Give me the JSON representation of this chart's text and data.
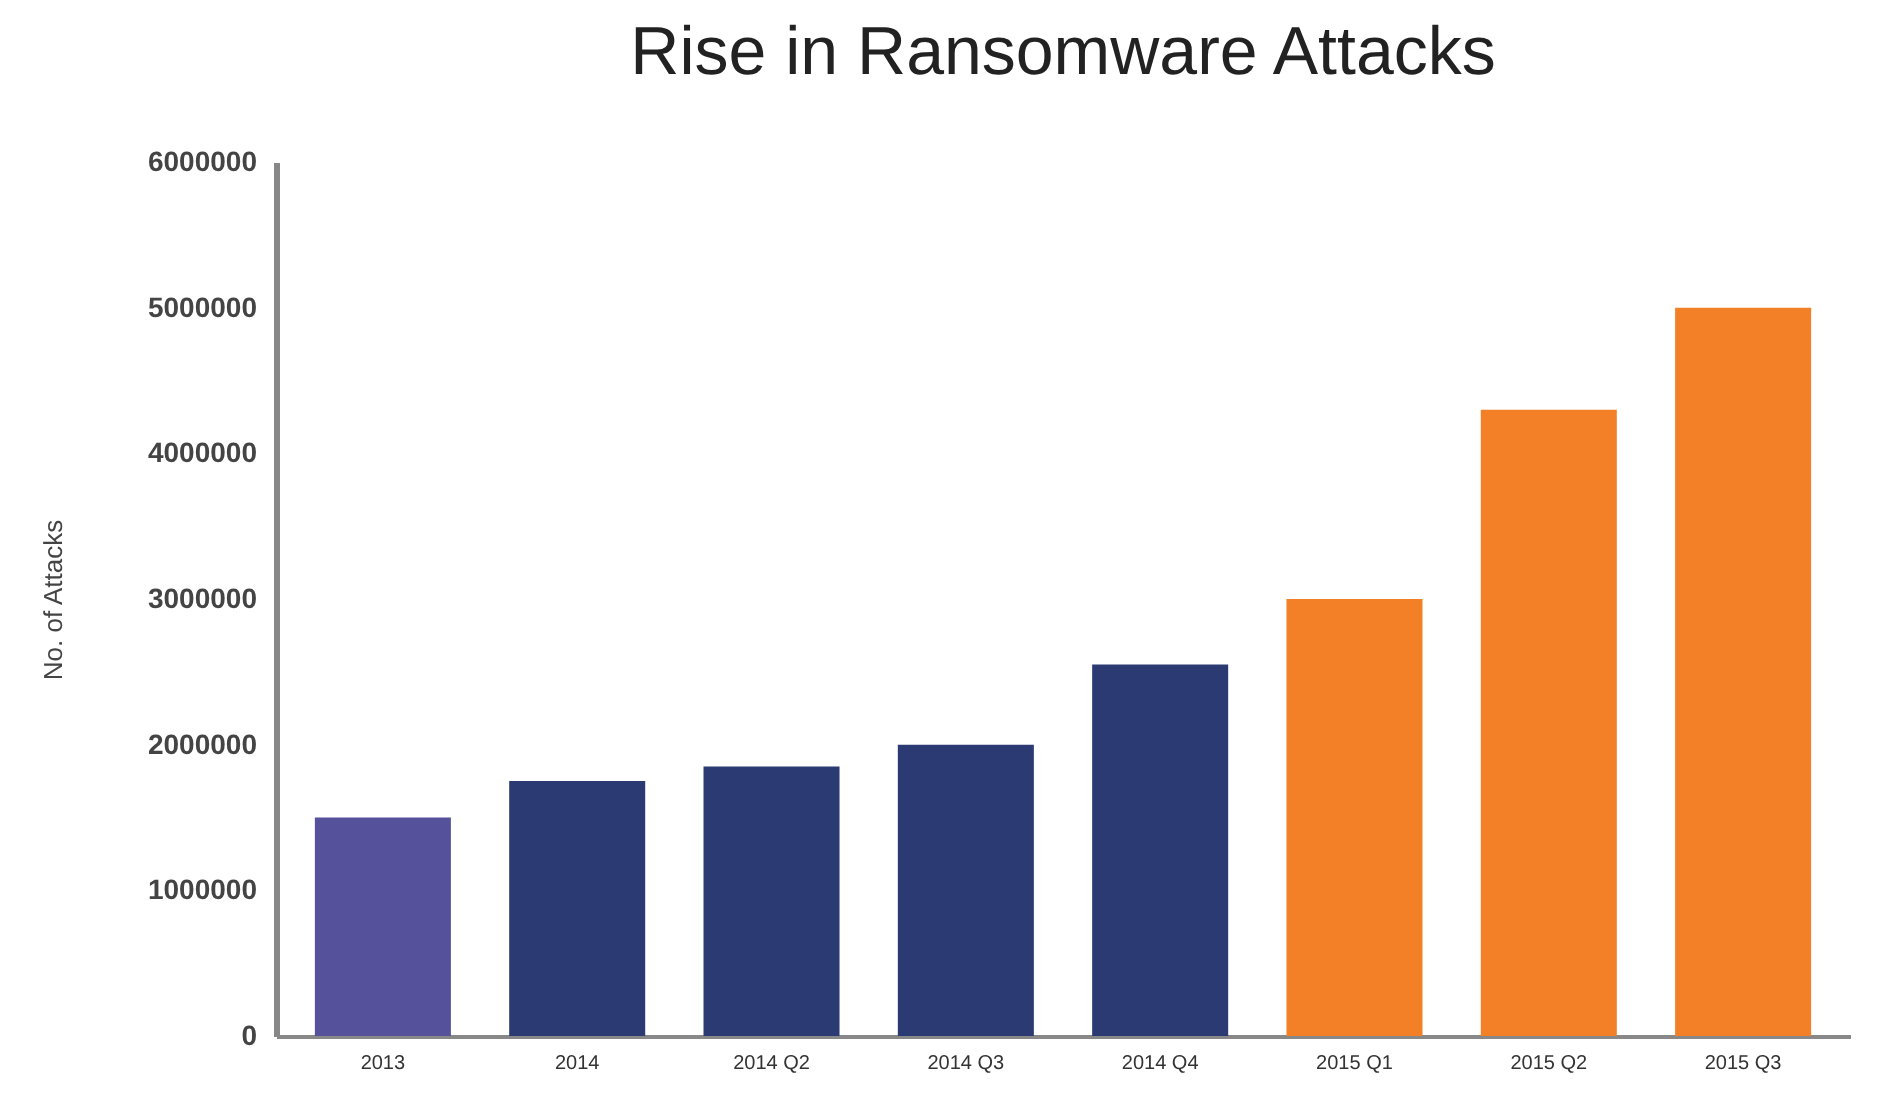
{
  "chart_data": {
    "type": "bar",
    "title": "Rise in Ransomware Attacks",
    "ylabel": "No. of Attacks",
    "categories": [
      "2013",
      "2014",
      "2014 Q2",
      "2014 Q3",
      "2014 Q4",
      "2015 Q1",
      "2015 Q2",
      "2015 Q3"
    ],
    "values": [
      1500000,
      1750000,
      1850000,
      2000000,
      2550000,
      3000000,
      4300000,
      5000000
    ],
    "colors": [
      "#55519a",
      "#2b3a73",
      "#2b3a73",
      "#2b3a73",
      "#2b3a73",
      "#f37f26",
      "#f37f26",
      "#f37f26"
    ],
    "ylim": [
      0,
      6000000
    ],
    "yticks": [
      0,
      1000000,
      2000000,
      3000000,
      4000000,
      5000000,
      6000000
    ],
    "grid": false
  }
}
